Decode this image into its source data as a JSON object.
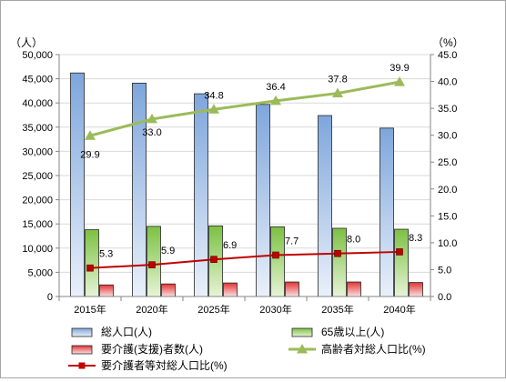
{
  "chart_data": {
    "type": "bar",
    "categories": [
      "2015年",
      "2020年",
      "2025年",
      "2030年",
      "2035年",
      "2040年"
    ],
    "y_left": {
      "unit": "（人）",
      "min": 0,
      "max": 50000,
      "ticks": [
        "0",
        "5,000",
        "10,000",
        "15,000",
        "20,000",
        "25,000",
        "30,000",
        "35,000",
        "40,000",
        "45,000",
        "50,000"
      ]
    },
    "y_right": {
      "unit": "（%）",
      "min": 0,
      "max": 45,
      "ticks": [
        "0.0",
        "5.0",
        "10.0",
        "15.0",
        "20.0",
        "25.0",
        "30.0",
        "35.0",
        "40.0",
        "45.0"
      ]
    },
    "grid": true,
    "legend_position": "bottom",
    "bar_series": [
      {
        "name": "総人口(人)",
        "axis": "left",
        "color": "#8eb4e3",
        "values": [
          46200,
          44100,
          41900,
          39700,
          37400,
          34800
        ]
      },
      {
        "name": "65歳以上(人)",
        "axis": "left",
        "color": "#92d050",
        "values": [
          13800,
          14500,
          14600,
          14400,
          14100,
          13900
        ]
      },
      {
        "name": "要介護(支援)者数(人)",
        "axis": "left",
        "color": "#e84c4c",
        "values": [
          2400,
          2600,
          2800,
          3000,
          3000,
          2900
        ]
      }
    ],
    "line_series": [
      {
        "name": "高齢者対総人口比(%)",
        "axis": "right",
        "color": "#9bbb59",
        "marker": "triangle",
        "values": [
          29.9,
          33.0,
          34.8,
          36.4,
          37.8,
          39.9
        ],
        "labels": [
          "29.9",
          "33.0",
          "34.8",
          "36.4",
          "37.8",
          "39.9"
        ]
      },
      {
        "name": "要介護者等対総人口比(%)",
        "axis": "right",
        "color": "#c00000",
        "marker": "square",
        "values": [
          5.3,
          5.9,
          6.9,
          7.7,
          8.0,
          8.3
        ],
        "labels": [
          "5.3",
          "5.9",
          "6.9",
          "7.7",
          "8.0",
          "8.3"
        ]
      }
    ]
  }
}
